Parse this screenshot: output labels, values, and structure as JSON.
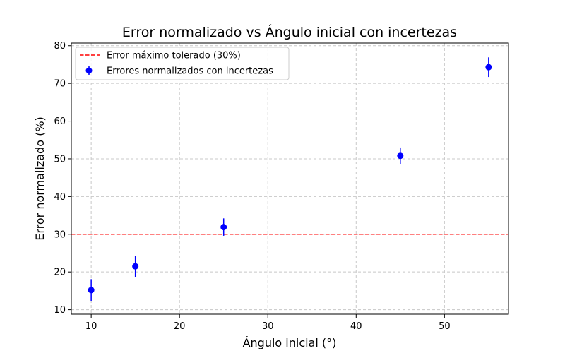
{
  "chart_data": {
    "type": "scatter",
    "title": "Error normalizado vs Ángulo inicial con incertezas",
    "xlabel": "Ángulo inicial (°)",
    "ylabel": "Error normalizado (%)",
    "xlim": [
      7.75,
      57.25
    ],
    "ylim": [
      8.8,
      80.7
    ],
    "xticks": [
      10,
      20,
      30,
      40,
      50
    ],
    "yticks": [
      10,
      20,
      30,
      40,
      50,
      60,
      70,
      80
    ],
    "grid": true,
    "legend_position": "top-left",
    "series": [
      {
        "name": "Errores normalizados con incertezas",
        "type": "errorbar",
        "color": "#0000ff",
        "x": [
          10,
          15,
          25,
          45,
          55
        ],
        "y": [
          15.2,
          21.5,
          31.9,
          50.8,
          74.3
        ],
        "yerr": [
          2.9,
          2.8,
          2.3,
          2.2,
          2.6
        ]
      }
    ],
    "reference_lines": [
      {
        "name": "Error máximo tolerado (30%)",
        "orientation": "horizontal",
        "y": 30,
        "style": "dashed",
        "color": "#ff0000"
      }
    ]
  }
}
